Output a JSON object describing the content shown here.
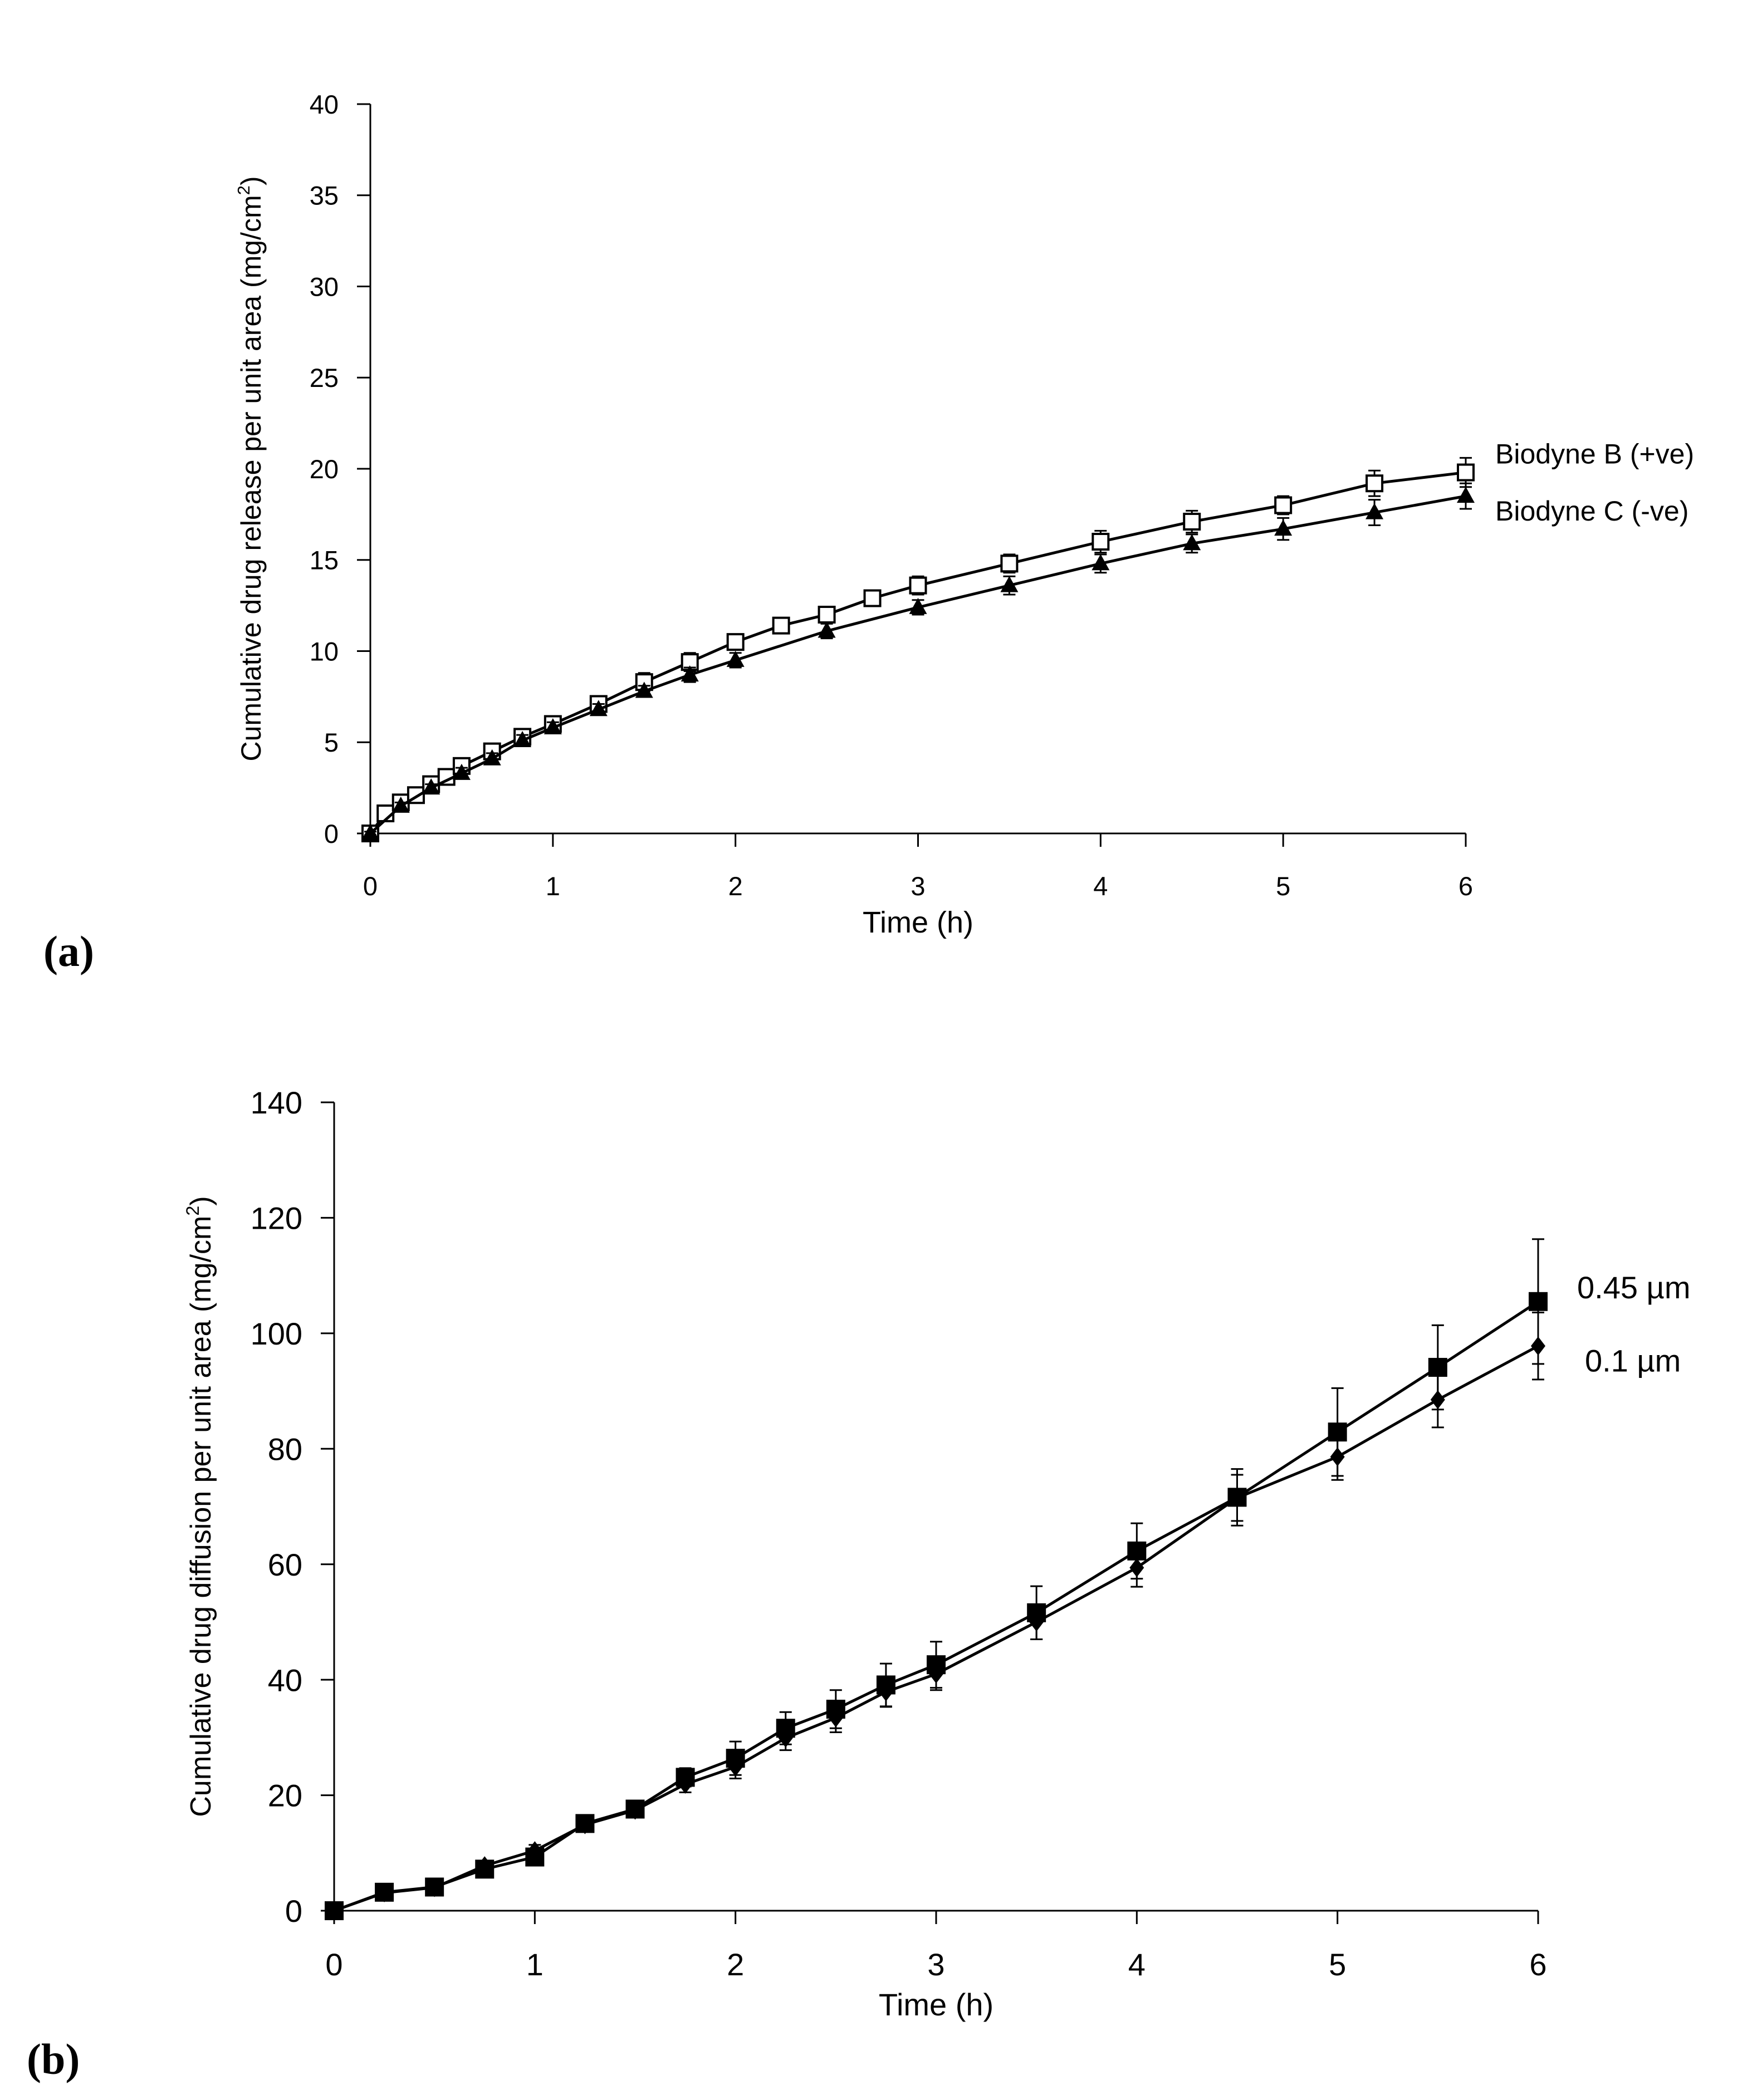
{
  "chart_data": [
    {
      "type": "line",
      "panel_label": "(a)",
      "title": "",
      "xlabel": "Time (h)",
      "ylabel_prefix": "Cumulative drug release per unit area (mg/cm",
      "ylabel_sup": "2",
      "ylabel_suffix": ")",
      "xlim": [
        0,
        6
      ],
      "ylim": [
        0,
        40
      ],
      "x_ticks": [
        0,
        1,
        2,
        3,
        4,
        5,
        6
      ],
      "y_ticks": [
        0,
        5,
        10,
        15,
        20,
        25,
        30,
        35,
        40
      ],
      "series": [
        {
          "name": "Biodyne B (+ve)",
          "marker": "open-square",
          "x": [
            0,
            0.083,
            0.167,
            0.25,
            0.333,
            0.417,
            0.5,
            0.667,
            0.833,
            1,
            1.25,
            1.5,
            1.75,
            2,
            2.25,
            2.5,
            2.75,
            3,
            3.5,
            4,
            4.5,
            5,
            5.5,
            6
          ],
          "y": [
            0,
            1.1,
            1.7,
            2.1,
            2.7,
            3.1,
            3.7,
            4.5,
            5.3,
            6.0,
            7.1,
            8.3,
            9.4,
            10.5,
            11.4,
            12.0,
            12.9,
            13.6,
            14.8,
            16.0,
            17.1,
            18.0,
            19.2,
            19.8
          ],
          "err": [
            0.1,
            0.2,
            0.2,
            0.2,
            0.2,
            0.2,
            0.2,
            0.3,
            0.3,
            0.3,
            0.4,
            0.5,
            0.5,
            0.4,
            0.3,
            0.4,
            0.4,
            0.5,
            0.5,
            0.6,
            0.6,
            0.5,
            0.7,
            0.8
          ]
        },
        {
          "name": "Biodyne C (-ve)",
          "marker": "filled-triangle",
          "x": [
            0,
            0.167,
            0.333,
            0.5,
            0.667,
            0.833,
            1,
            1.25,
            1.5,
            1.75,
            2,
            2.5,
            3,
            3.5,
            4,
            4.5,
            5,
            5.5,
            6
          ],
          "y": [
            0,
            1.5,
            2.5,
            3.3,
            4.1,
            5.1,
            5.8,
            6.8,
            7.8,
            8.7,
            9.5,
            11.1,
            12.4,
            13.6,
            14.8,
            15.9,
            16.7,
            17.6,
            18.5
          ],
          "err": [
            0.1,
            0.2,
            0.2,
            0.3,
            0.3,
            0.3,
            0.3,
            0.3,
            0.3,
            0.4,
            0.4,
            0.4,
            0.4,
            0.5,
            0.5,
            0.5,
            0.6,
            0.7,
            0.7
          ]
        }
      ]
    },
    {
      "type": "line",
      "panel_label": "(b)",
      "title": "",
      "xlabel": "Time (h)",
      "ylabel_prefix": "Cumulative drug diffusion per unit area (mg/cm",
      "ylabel_sup": "2",
      "ylabel_suffix": ")",
      "xlim": [
        0,
        6
      ],
      "ylim": [
        0,
        140
      ],
      "x_ticks": [
        0,
        1,
        2,
        3,
        4,
        5,
        6
      ],
      "y_ticks": [
        0,
        20,
        40,
        60,
        80,
        100,
        120,
        140
      ],
      "series": [
        {
          "name": "0.45 µm",
          "marker": "filled-square",
          "x": [
            0,
            0.25,
            0.5,
            0.75,
            1,
            1.25,
            1.5,
            1.75,
            2,
            2.25,
            2.5,
            2.75,
            3,
            3.5,
            4,
            4.5,
            5,
            5.5,
            6
          ],
          "y": [
            0,
            3.2,
            4.1,
            7.2,
            9.3,
            15.1,
            17.6,
            23.1,
            26.4,
            31.6,
            34.9,
            39.1,
            42.6,
            51.6,
            62.3,
            71.6,
            82.9,
            94.1,
            105.5
          ],
          "err": [
            0.3,
            0.5,
            0.5,
            0.8,
            1.0,
            1.0,
            1.0,
            1.6,
            2.9,
            2.8,
            3.3,
            3.7,
            4.0,
            4.6,
            4.8,
            4.9,
            7.6,
            7.3,
            10.8
          ]
        },
        {
          "name": "0.1 µm",
          "marker": "filled-diamond",
          "x": [
            0,
            0.25,
            0.5,
            0.75,
            1,
            1.25,
            1.5,
            1.75,
            2,
            2.25,
            2.5,
            2.75,
            3,
            3.5,
            4,
            4.5,
            5,
            5.5,
            6
          ],
          "y": [
            0,
            3.1,
            4.0,
            7.8,
            10.4,
            14.9,
            17.4,
            21.9,
            24.9,
            29.9,
            33.4,
            37.9,
            41.0,
            50.0,
            59.4,
            71.5,
            78.6,
            88.5,
            97.8
          ],
          "err": [
            0.3,
            0.5,
            0.5,
            0.8,
            1.0,
            1.0,
            1.0,
            1.4,
            2.0,
            2.1,
            2.5,
            2.6,
            2.8,
            3.0,
            3.3,
            4.0,
            4.0,
            4.8,
            5.8
          ]
        }
      ]
    }
  ]
}
